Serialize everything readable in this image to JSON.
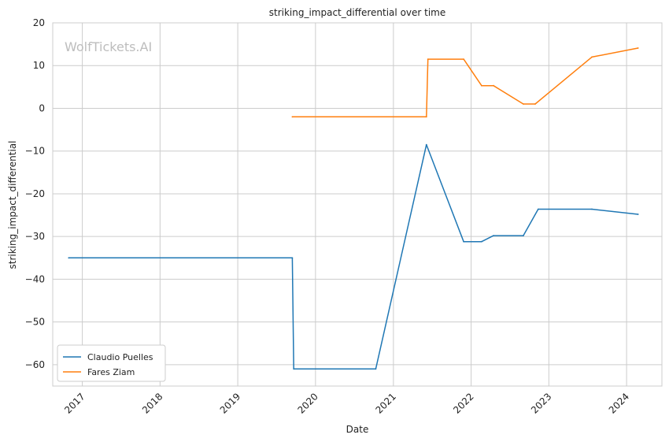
{
  "chart_data": {
    "type": "line",
    "title": "striking_impact_differential over time",
    "xlabel": "Date",
    "ylabel": "striking_impact_differential",
    "watermark": "WolfTickets.AI",
    "xlim": [
      "2016-08-15",
      "2024-06-15"
    ],
    "ylim": [
      -65,
      20
    ],
    "x_ticks": [
      "2017",
      "2018",
      "2019",
      "2020",
      "2021",
      "2022",
      "2023",
      "2024"
    ],
    "y_ticks": [
      20,
      10,
      0,
      -10,
      -20,
      -30,
      -40,
      -50,
      -60
    ],
    "y_tick_labels": [
      "20",
      "10",
      "0",
      "−10",
      "−20",
      "−30",
      "−40",
      "−50",
      "−60"
    ],
    "grid": true,
    "legend_position": "lower-left",
    "series": [
      {
        "name": "Claudio Puelles",
        "color": "#1f77b4",
        "points": [
          [
            "2016-10-29",
            -35
          ],
          [
            "2019-09-14",
            -35
          ],
          [
            "2019-09-21",
            -61
          ],
          [
            "2020-10-10",
            -61
          ],
          [
            "2021-06-05",
            -8.5
          ],
          [
            "2021-11-27",
            -31.2
          ],
          [
            "2022-02-19",
            -31.2
          ],
          [
            "2022-04-16",
            -29.8
          ],
          [
            "2022-09-03",
            -29.8
          ],
          [
            "2022-11-12",
            -23.6
          ],
          [
            "2023-07-22",
            -23.6
          ],
          [
            "2024-02-24",
            -24.8
          ]
        ]
      },
      {
        "name": "Fares Ziam",
        "color": "#ff7f0e",
        "points": [
          [
            "2019-09-14",
            -2
          ],
          [
            "2021-06-05",
            -2
          ],
          [
            "2021-06-12",
            11.5
          ],
          [
            "2021-11-27",
            11.5
          ],
          [
            "2022-02-19",
            5.3
          ],
          [
            "2022-04-16",
            5.3
          ],
          [
            "2022-09-03",
            1
          ],
          [
            "2022-10-29",
            1
          ],
          [
            "2023-07-22",
            12
          ],
          [
            "2024-02-24",
            14.1
          ]
        ]
      }
    ]
  }
}
